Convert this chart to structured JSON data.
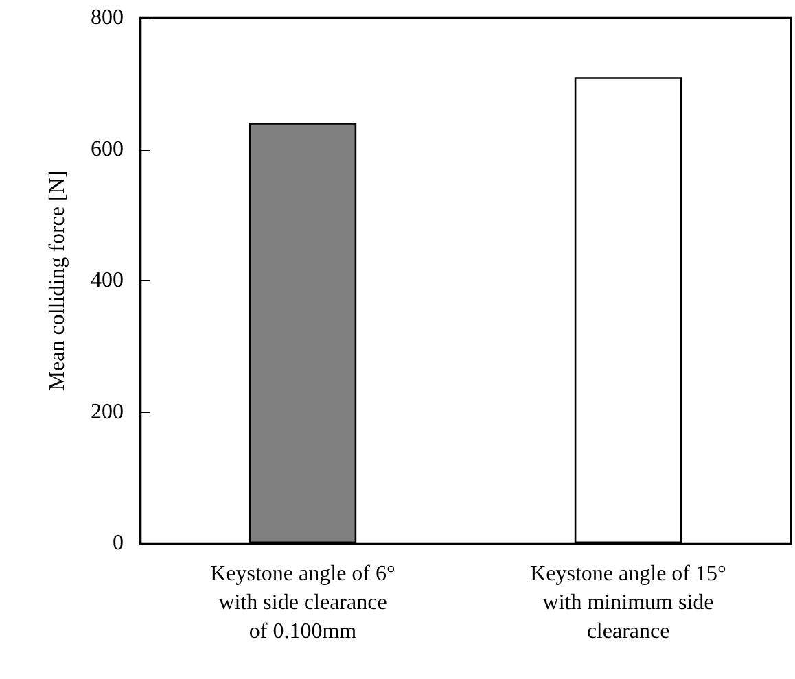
{
  "chart_data": {
    "type": "bar",
    "categories": [
      "Keystone angle of 6°\nwith side clearance\nof 0.100mm",
      "Keystone angle of 15°\nwith minimum side\nclearance"
    ],
    "ylabel": "Mean colliding force [N]",
    "colors": [
      "#808080",
      "#ffffff"
    ],
    "values": [
      640,
      710
    ],
    "ylim": [
      0,
      800
    ],
    "yticks": [
      0,
      200,
      400,
      600,
      800
    ],
    "grid": false
  }
}
